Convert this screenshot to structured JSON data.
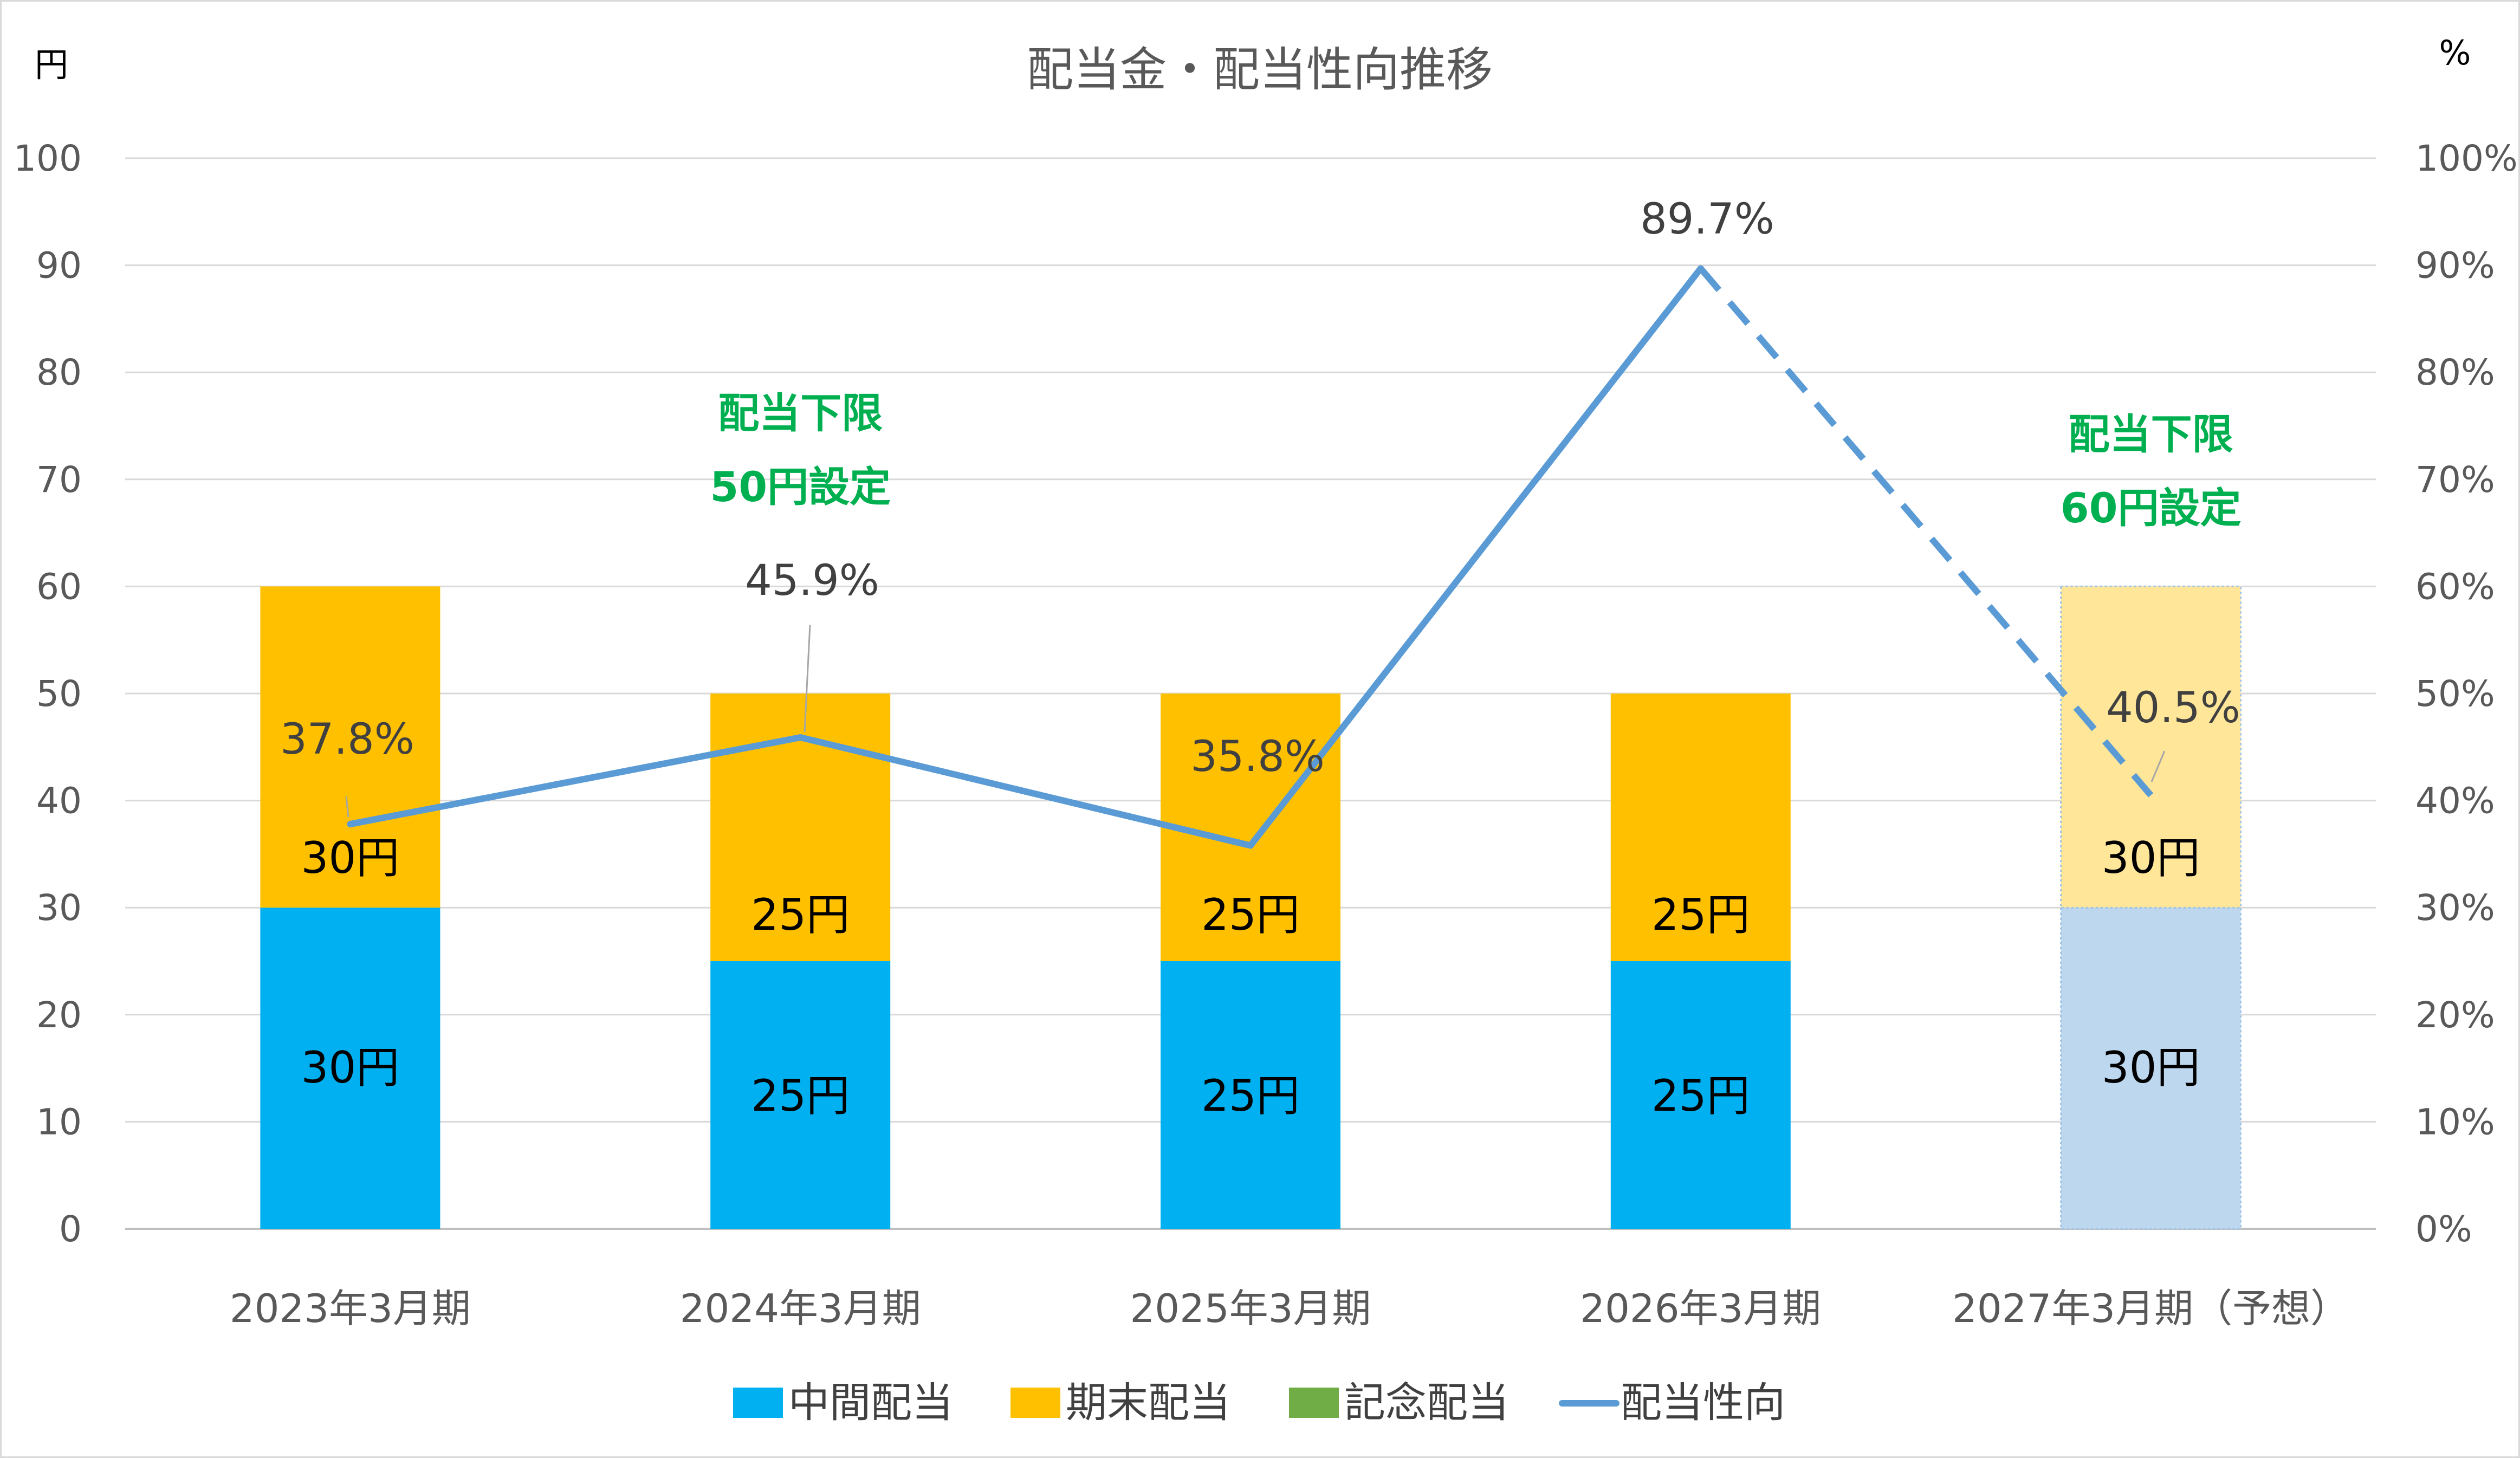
{
  "chart_data": {
    "type": "bar",
    "title": "配当金・配当性向推移",
    "y_unit_left": "円",
    "y_unit_right": "%",
    "ylim": [
      0,
      100
    ],
    "y2lim": [
      0,
      100
    ],
    "y_ticks": [
      "0",
      "10",
      "20",
      "30",
      "40",
      "50",
      "60",
      "70",
      "80",
      "90",
      "100"
    ],
    "y2_ticks": [
      "0%",
      "10%",
      "20%",
      "30%",
      "40%",
      "50%",
      "60%",
      "70%",
      "80%",
      "90%",
      "100%"
    ],
    "grid": true,
    "legend_position": "bottom",
    "categories": [
      "2023年3月期",
      "2024年3月期",
      "2025年3月期",
      "2026年3月期",
      "2027年3月期（予想）"
    ],
    "series": [
      {
        "name": "中間配当",
        "kind": "bar",
        "color": "#00b0f0",
        "forecast_color": "#bdd7ee",
        "values": [
          30,
          25,
          25,
          25,
          30
        ],
        "labels": [
          "30円",
          "25円",
          "25円",
          "25円",
          "30円"
        ]
      },
      {
        "name": "期末配当",
        "kind": "bar",
        "color": "#ffc000",
        "forecast_color": "#ffe699",
        "values": [
          30,
          25,
          25,
          25,
          30
        ],
        "labels": [
          "30円",
          "25円",
          "25円",
          "25円",
          "30円"
        ]
      },
      {
        "name": "記念配当",
        "kind": "bar",
        "color": "#70ad47",
        "values": [
          0,
          0,
          0,
          0,
          0
        ]
      },
      {
        "name": "配当性向",
        "kind": "line",
        "axis": "right",
        "color": "#5b9bd5",
        "values": [
          37.8,
          45.9,
          35.8,
          89.7,
          40.5
        ],
        "labels": [
          "37.8%",
          "45.9%",
          "35.8%",
          "89.7%",
          "40.5%"
        ],
        "dashed_last_segment": true
      }
    ],
    "forecast_index": 4,
    "annotations": [
      {
        "category_index": 1,
        "lines": [
          "配当下限",
          "50円設定"
        ],
        "color": "#00b050"
      },
      {
        "category_index": 4,
        "lines": [
          "配当下限",
          "60円設定"
        ],
        "color": "#00b050"
      }
    ]
  }
}
